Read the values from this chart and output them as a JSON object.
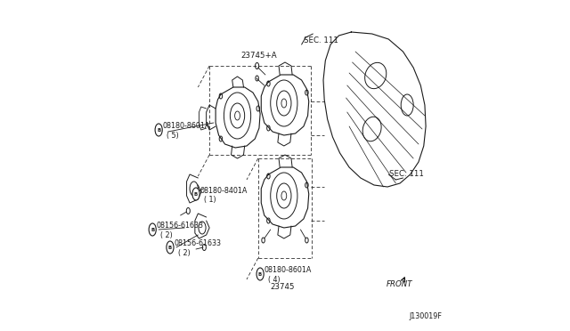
{
  "bg_color": "#ffffff",
  "line_color": "#1a1a1a",
  "fig_width": 6.4,
  "fig_height": 3.72,
  "dpi": 100,
  "labels": {
    "part_23745A": "23745+A",
    "part_08180_8601A_5": "08180-8601A",
    "part_08180_8601A_5b": "( 5)",
    "part_08180_8401A": "08180-8401A",
    "part_08180_8401A_b": "( 1)",
    "part_08156_61633_2a": "08156-61633",
    "part_08156_61633_2ab": "( 2)",
    "part_08156_61633_2b": "08156-61633",
    "part_08156_61633_2bb": "( 2)",
    "part_08180_8601A_4": "08180-8601A",
    "part_08180_8601A_4b": "( 4)",
    "part_23745": "23745",
    "sec111_top": "SEC. 111",
    "sec111_bot": "SEC. 111",
    "front": "FRONT",
    "diagram_id": "J130019F"
  }
}
